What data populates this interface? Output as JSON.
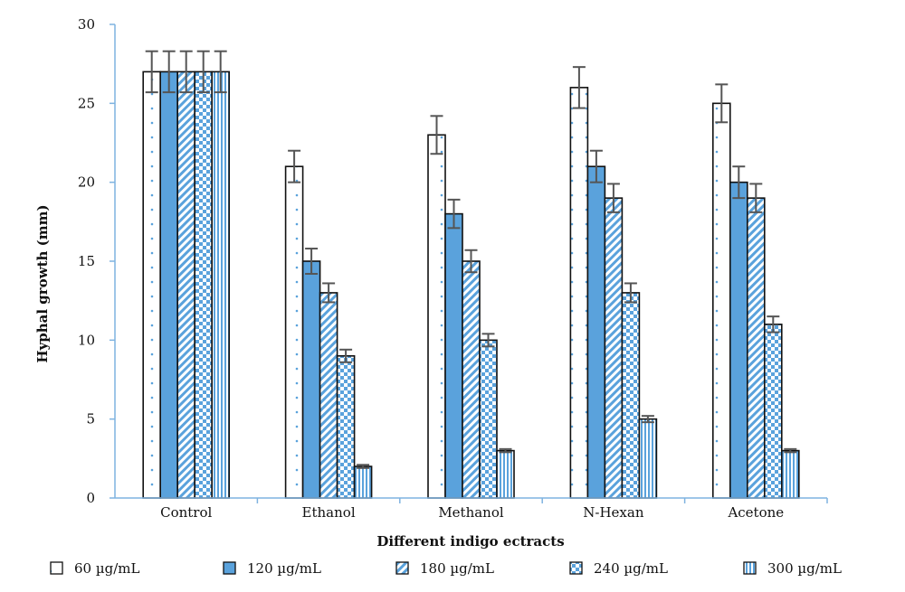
{
  "chart_data": {
    "type": "bar",
    "xlabel": "Different indigo ectracts",
    "ylabel": "Hyphal growth (mm)",
    "ylim": [
      0,
      30
    ],
    "yticks": [
      "0",
      "5",
      "10",
      "15",
      "20",
      "25",
      "30"
    ],
    "categories": [
      "Control",
      "Ethanol",
      "Methanol",
      "N-Hexan",
      "Acetone"
    ],
    "series": [
      {
        "name": "60 µg/mL",
        "values": [
          27,
          21,
          23,
          26,
          25
        ],
        "errors": [
          1.3,
          1.0,
          1.2,
          1.3,
          1.2
        ],
        "pattern": "dots",
        "color": "#5aa2dc"
      },
      {
        "name": "120 µg/mL",
        "values": [
          27,
          15,
          18,
          21,
          20
        ],
        "errors": [
          1.3,
          0.8,
          0.9,
          1.0,
          1.0
        ],
        "pattern": "solid",
        "color": "#5aa2dc"
      },
      {
        "name": "180 µg/mL",
        "values": [
          27,
          13,
          15,
          19,
          19
        ],
        "errors": [
          1.3,
          0.6,
          0.7,
          0.9,
          0.9
        ],
        "pattern": "diagonal",
        "color": "#5aa2dc"
      },
      {
        "name": "240 µg/mL",
        "values": [
          27,
          9,
          10,
          13,
          11
        ],
        "errors": [
          1.3,
          0.4,
          0.4,
          0.6,
          0.5
        ],
        "pattern": "checker",
        "color": "#5aa2dc"
      },
      {
        "name": "300 µg/mL",
        "values": [
          27,
          2,
          3,
          5,
          3
        ],
        "errors": [
          1.3,
          0.1,
          0.1,
          0.2,
          0.1
        ],
        "pattern": "vertical",
        "color": "#5aa2dc"
      }
    ],
    "legend_position": "bottom",
    "grid": false,
    "axis_color": "#7fb3e0",
    "errorbar_color": "#555555"
  }
}
